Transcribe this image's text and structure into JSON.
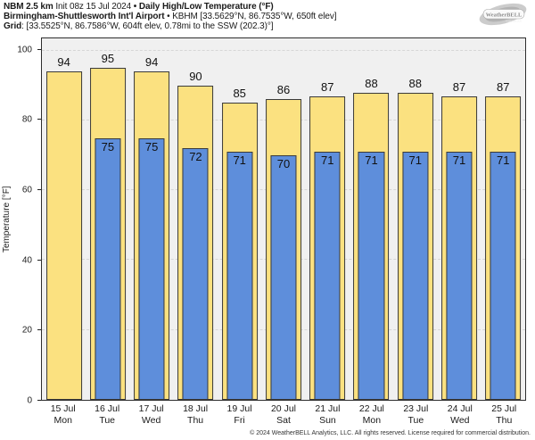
{
  "header": {
    "line1": {
      "bold1": "NBM 2.5 km",
      "normal1": " Init 08z 15 Jul 2024 ",
      "bold2": "• Daily High/Low Temperature (°F)"
    },
    "line2": {
      "bold1": "Birmingham-Shuttlesworth Int'l Airport",
      "normal1": " • KBHM [33.5629°N, 86.7535°W, 650ft elev]"
    },
    "line3": {
      "bold1": "Grid",
      "normal1": ": [33.5525°N, 86.7586°W, 604ft elev, 0.78mi to the SSW (202.3)°]"
    }
  },
  "logo": {
    "brand": "WeatherBELL",
    "sub": "Analytics LLC"
  },
  "chart_data": {
    "type": "bar",
    "title": "NBM 2.5 km Daily High/Low Temperature (°F) — Birmingham-Shuttlesworth Int'l Airport (KBHM)",
    "ylabel": "Temperature [°F]",
    "yticks": [
      0,
      20,
      40,
      60,
      80,
      100
    ],
    "ylim": [
      0,
      103.5
    ],
    "grid": "horizontal-dashed",
    "legend_position": "none",
    "categories": [
      {
        "date": "15 Jul",
        "day": "Mon"
      },
      {
        "date": "16 Jul",
        "day": "Tue"
      },
      {
        "date": "17 Jul",
        "day": "Wed"
      },
      {
        "date": "18 Jul",
        "day": "Thu"
      },
      {
        "date": "19 Jul",
        "day": "Fri"
      },
      {
        "date": "20 Jul",
        "day": "Sat"
      },
      {
        "date": "21 Jul",
        "day": "Sun"
      },
      {
        "date": "22 Jul",
        "day": "Mon"
      },
      {
        "date": "23 Jul",
        "day": "Tue"
      },
      {
        "date": "24 Jul",
        "day": "Wed"
      },
      {
        "date": "25 Jul",
        "day": "Thu"
      }
    ],
    "series": [
      {
        "name": "High",
        "color": "#FBE180",
        "values": [
          94,
          95,
          94,
          90,
          85,
          86,
          87,
          88,
          88,
          87,
          87
        ]
      },
      {
        "name": "Low",
        "color": "#5E8EDB",
        "values": [
          null,
          75,
          75,
          72,
          71,
          70,
          71,
          71,
          71,
          71,
          71
        ]
      }
    ],
    "colors": {
      "plot_bg": "#F0F0F0",
      "bar_outline": "#3A3A3A",
      "gridline": "#D6D6D6",
      "axis": "#222222"
    }
  },
  "footer": "© 2024 WeatherBELL Analytics, LLC. All rights reserved. License required for commercial distribution."
}
